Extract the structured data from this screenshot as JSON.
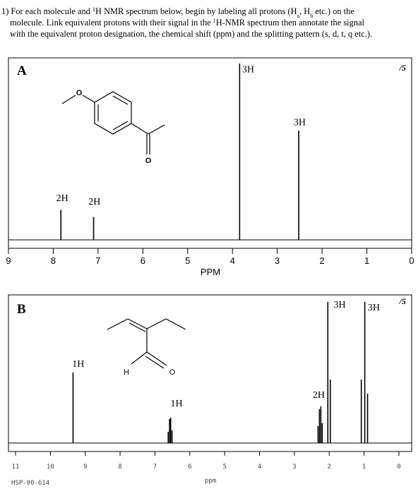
{
  "question": {
    "lines": [
      [
        {
          "text": "1) For each molecule and "
        },
        {
          "sup": "1"
        },
        {
          "text": "H NMR spectrum below, begin by labeling all protons (H"
        },
        {
          "sub": "a"
        },
        {
          "text": ", H"
        },
        {
          "sub": "b"
        },
        {
          "text": " etc.) on the"
        }
      ],
      [
        {
          "text": "molecule. Link equivalent protons with their signal in the "
        },
        {
          "sup": "1"
        },
        {
          "text": "H-NMR spectrum then annotate the signal"
        }
      ],
      [
        {
          "text": "with the equivalent proton designation, the chemical shift (ppm) and the splitting pattern (s, d, t, q etc.)."
        }
      ]
    ]
  },
  "spectra": [
    {
      "label": "A",
      "score": "/5",
      "x_label": "PPM",
      "xlim": [
        9,
        0
      ],
      "xticks": [
        9,
        8,
        7,
        6,
        5,
        4,
        3,
        2,
        1,
        0
      ],
      "ylim": [
        0,
        100
      ],
      "atoms": [
        "O",
        "O"
      ],
      "peaks": [
        {
          "ppm": 7.83,
          "intensity": 17
        },
        {
          "ppm": 7.1,
          "intensity": 13
        },
        {
          "ppm": 3.84,
          "intensity": 100
        },
        {
          "ppm": 2.52,
          "intensity": 62
        }
      ],
      "annotations": [
        {
          "text": "2H",
          "ppm": 7.8,
          "intensity": 22
        },
        {
          "text": "2H",
          "ppm": 7.08,
          "intensity": 20
        },
        {
          "text": "3H",
          "ppm": 3.65,
          "intensity": 95
        },
        {
          "text": "3H",
          "ppm": 2.5,
          "intensity": 65
        }
      ]
    },
    {
      "label": "B",
      "score": "/5",
      "x_label": "ppm",
      "footnote": "HSP-00-614",
      "xlim": [
        11,
        0
      ],
      "xticks": [
        11,
        10,
        9,
        8,
        7,
        6,
        5,
        4,
        3,
        2,
        1,
        0
      ],
      "ylim": [
        0,
        100
      ],
      "atoms": [
        "H",
        "O"
      ],
      "peaks": [
        {
          "ppm": 9.35,
          "intensity": 50
        },
        {
          "ppm": 6.62,
          "intensity": 8
        },
        {
          "ppm": 6.58,
          "intensity": 17
        },
        {
          "ppm": 6.55,
          "intensity": 18
        },
        {
          "ppm": 6.51,
          "intensity": 9
        },
        {
          "ppm": 2.32,
          "intensity": 12
        },
        {
          "ppm": 2.28,
          "intensity": 24
        },
        {
          "ppm": 2.24,
          "intensity": 26
        },
        {
          "ppm": 2.2,
          "intensity": 14
        },
        {
          "ppm": 2.04,
          "intensity": 100
        },
        {
          "ppm": 1.97,
          "intensity": 45
        },
        {
          "ppm": 1.08,
          "intensity": 45
        },
        {
          "ppm": 0.98,
          "intensity": 100
        },
        {
          "ppm": 0.9,
          "intensity": 35
        }
      ],
      "annotations": [
        {
          "text": "1H",
          "ppm": 9.2,
          "intensity": 54
        },
        {
          "text": "1H",
          "ppm": 6.38,
          "intensity": 26
        },
        {
          "text": "2H",
          "ppm": 2.3,
          "intensity": 32
        },
        {
          "text": "3H",
          "ppm": 1.7,
          "intensity": 96
        },
        {
          "text": "3H",
          "ppm": 0.72,
          "intensity": 94
        }
      ]
    }
  ]
}
